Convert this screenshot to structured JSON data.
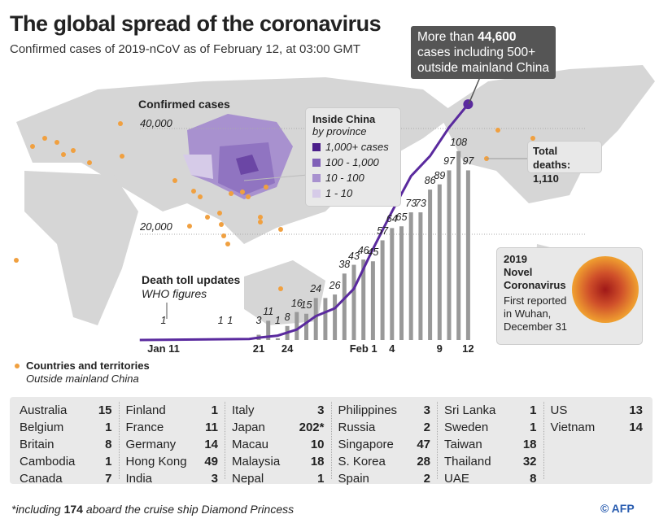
{
  "title": "The global spread of the coronavirus",
  "subtitle": "Confirmed cases of 2019-nCoV as of February 12, at 03:00 GMT",
  "callout": {
    "prefix": "More than",
    "number": "44,600",
    "rest1": "cases including 500+",
    "rest2": "outside mainland China"
  },
  "deaths_box": {
    "label": "Total deaths:",
    "value": "1,110"
  },
  "china_legend": {
    "title": "Inside China",
    "subtitle": "by province",
    "items": [
      {
        "label": "1,000+ cases",
        "color": "#4b1e8a"
      },
      {
        "label": "100 - 1,000",
        "color": "#8060b8"
      },
      {
        "label": "10 - 100",
        "color": "#a891cf"
      },
      {
        "label": "1 - 10",
        "color": "#d6cbe8"
      }
    ]
  },
  "virus_box": {
    "l1": "2019",
    "l2": "Novel",
    "l3": "Coronavirus",
    "l4": "First reported",
    "l5": "in Wuhan,",
    "l6": "December 31"
  },
  "countries_legend": {
    "title": "Countries and territories",
    "subtitle": "Outside mainland China"
  },
  "countries": [
    [
      [
        "Australia",
        "15"
      ],
      [
        "Belgium",
        "1"
      ],
      [
        "Britain",
        "8"
      ],
      [
        "Cambodia",
        "1"
      ],
      [
        "Canada",
        "7"
      ]
    ],
    [
      [
        "Finland",
        "1"
      ],
      [
        "France",
        "11"
      ],
      [
        "Germany",
        "14"
      ],
      [
        "Hong Kong",
        "49"
      ],
      [
        "India",
        "3"
      ]
    ],
    [
      [
        "Italy",
        "3"
      ],
      [
        "Japan",
        "202*"
      ],
      [
        "Macau",
        "10"
      ],
      [
        "Malaysia",
        "18"
      ],
      [
        "Nepal",
        "1"
      ]
    ],
    [
      [
        "Philippines",
        "3"
      ],
      [
        "Russia",
        "2"
      ],
      [
        "Singapore",
        "47"
      ],
      [
        "S. Korea",
        "28"
      ],
      [
        "Spain",
        "2"
      ]
    ],
    [
      [
        "Sri Lanka",
        "1"
      ],
      [
        "Sweden",
        "1"
      ],
      [
        "Taiwan",
        "18"
      ],
      [
        "Thailand",
        "32"
      ],
      [
        "UAE",
        "8"
      ]
    ],
    [
      [
        "US",
        "13"
      ],
      [
        "Vietnam",
        "14"
      ]
    ]
  ],
  "footnote": {
    "pre": "*including",
    "num": "174",
    "post": "aboard the cruise ship Diamond Princess"
  },
  "credit": "© AFP",
  "colors": {
    "curve": "#5a2a9e",
    "bars": "#999999",
    "dots": "#f0a040",
    "land": "#d6d6d6"
  },
  "chart_data": {
    "type": "bar+line",
    "cases_title": "Confirmed cases",
    "bars_title": "Death toll updates",
    "bars_subtitle": "WHO figures",
    "y_ticks": [
      {
        "value": 20000,
        "label": "20,000"
      },
      {
        "value": 40000,
        "label": "40,000"
      }
    ],
    "x_ticks": [
      {
        "day": 0,
        "label": "Jan 11"
      },
      {
        "day": 10,
        "label": "21"
      },
      {
        "day": 13,
        "label": "24"
      },
      {
        "day": 21,
        "label": "Feb 1"
      },
      {
        "day": 24,
        "label": "4"
      },
      {
        "day": 29,
        "label": "9"
      },
      {
        "day": 32,
        "label": "12"
      }
    ],
    "deaths": [
      {
        "day": 0,
        "value": 1
      },
      {
        "day": 6,
        "value": 1
      },
      {
        "day": 7,
        "value": 1
      },
      {
        "day": 10,
        "value": 3
      },
      {
        "day": 11,
        "value": 11
      },
      {
        "day": 12,
        "value": 1
      },
      {
        "day": 13,
        "value": 8
      },
      {
        "day": 14,
        "value": 16
      },
      {
        "day": 15,
        "value": 15
      },
      {
        "day": 16,
        "value": 24
      },
      {
        "day": 17,
        "value": null
      },
      {
        "day": 18,
        "value": 26
      },
      {
        "day": 19,
        "value": 38
      },
      {
        "day": 20,
        "value": 43
      },
      {
        "day": 21,
        "value": 46
      },
      {
        "day": 22,
        "value": 45
      },
      {
        "day": 23,
        "value": 57
      },
      {
        "day": 24,
        "value": 64
      },
      {
        "day": 25,
        "value": 65
      },
      {
        "day": 26,
        "value": 73
      },
      {
        "day": 27,
        "value": 73
      },
      {
        "day": 28,
        "value": 86
      },
      {
        "day": 29,
        "value": 89
      },
      {
        "day": 30,
        "value": 97
      },
      {
        "day": 31,
        "value": 108
      },
      {
        "day": 32,
        "value": 97
      }
    ],
    "cases_cumulative": [
      [
        0,
        41
      ],
      [
        9,
        200
      ],
      [
        10,
        440
      ],
      [
        12,
        830
      ],
      [
        14,
        1975
      ],
      [
        16,
        4515
      ],
      [
        18,
        6000
      ],
      [
        20,
        9700
      ],
      [
        22,
        17200
      ],
      [
        24,
        24300
      ],
      [
        26,
        31000
      ],
      [
        28,
        34800
      ],
      [
        30,
        40200
      ],
      [
        32,
        44600
      ]
    ]
  }
}
